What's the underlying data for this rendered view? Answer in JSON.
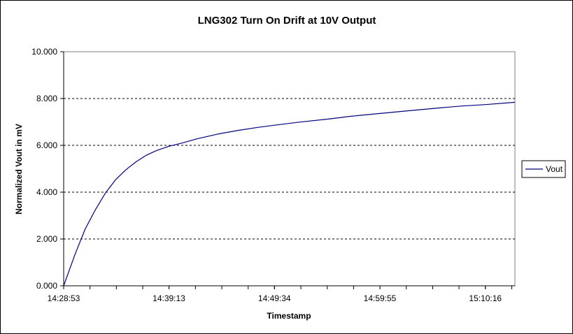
{
  "chart_data": {
    "type": "line",
    "title": "LNG302 Turn On Drift at 10V Output",
    "xlabel": "Timestamp",
    "ylabel": "Normalized Vout in mV",
    "x_start": "14:28:53",
    "x_end": "15:13:10",
    "xlim": [
      "14:28:53",
      "15:13:10"
    ],
    "ylim": [
      0,
      10
    ],
    "x_ticks": [
      "14:28:53",
      "14:39:13",
      "14:49:34",
      "14:59:55",
      "15:10:16"
    ],
    "y_ticks": [
      "0.000",
      "2.000",
      "4.000",
      "6.000",
      "8.000",
      "10.000"
    ],
    "grid": {
      "horizontal": true,
      "style": "dashed"
    },
    "legend": {
      "position": "right"
    },
    "series": [
      {
        "name": "Vout",
        "color": "#000080",
        "points": [
          [
            "14:28:53",
            0.0
          ],
          [
            "14:30:00",
            1.35
          ],
          [
            "14:31:00",
            2.43
          ],
          [
            "14:32:00",
            3.25
          ],
          [
            "14:33:00",
            3.98
          ],
          [
            "14:34:00",
            4.54
          ],
          [
            "14:35:00",
            4.96
          ],
          [
            "14:36:00",
            5.3
          ],
          [
            "14:37:00",
            5.58
          ],
          [
            "14:38:00",
            5.78
          ],
          [
            "14:39:13",
            5.96
          ],
          [
            "14:40:30",
            6.1
          ],
          [
            "14:42:00",
            6.28
          ],
          [
            "14:44:00",
            6.48
          ],
          [
            "14:46:00",
            6.64
          ],
          [
            "14:48:00",
            6.77
          ],
          [
            "14:49:34",
            6.86
          ],
          [
            "14:52:00",
            6.99
          ],
          [
            "14:55:00",
            7.13
          ],
          [
            "14:57:00",
            7.24
          ],
          [
            "14:59:55",
            7.36
          ],
          [
            "15:03:00",
            7.49
          ],
          [
            "15:06:00",
            7.61
          ],
          [
            "15:08:00",
            7.68
          ],
          [
            "15:10:16",
            7.74
          ],
          [
            "15:13:10",
            7.84
          ]
        ]
      }
    ]
  }
}
